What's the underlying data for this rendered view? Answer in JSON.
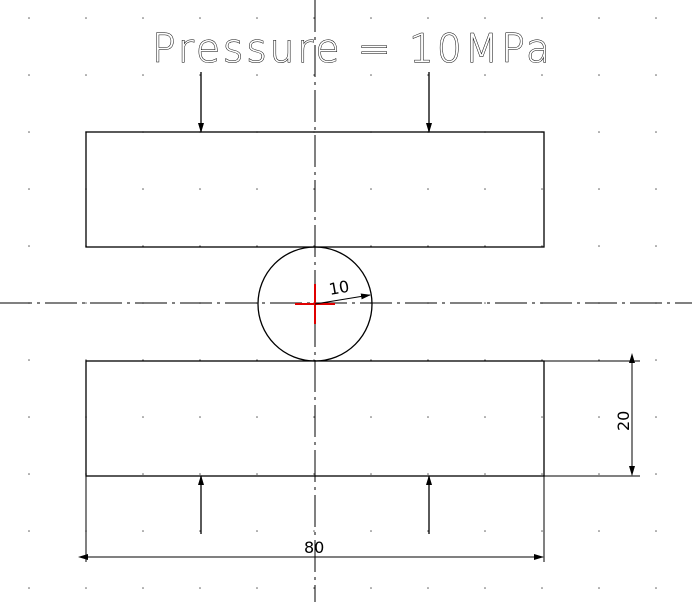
{
  "title": "Pressure = 10MPa",
  "dimensions": {
    "radius": "10",
    "height": "20",
    "width": "80"
  },
  "colors": {
    "background": "#ffffff",
    "lines": "#000000",
    "center_mark": "#e00000",
    "grid": "#5f5f5f"
  },
  "symbols": {
    "pressure_arrows": "down-arrow-icon",
    "reaction_arrows": "up-arrow-icon",
    "center_mark": "red-center-cross-icon"
  }
}
